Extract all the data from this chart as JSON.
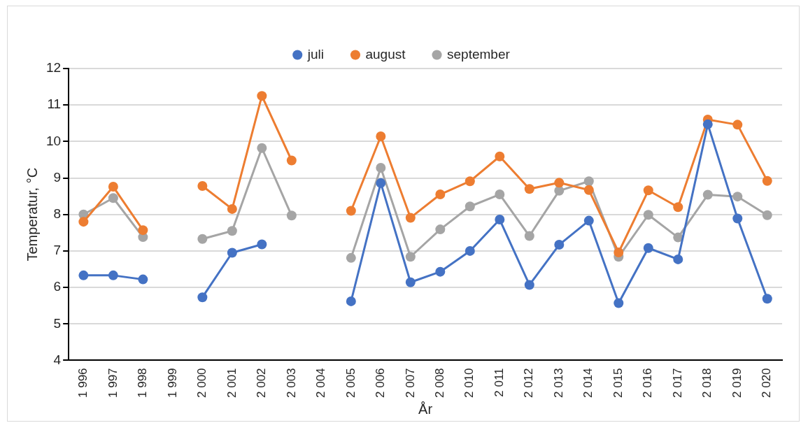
{
  "chart_data": {
    "type": "line",
    "xlabel": "År",
    "ylabel": "Temperatur, °C",
    "categories": [
      "1 996",
      "1 997",
      "1 998",
      "1 999",
      "2 000",
      "2 001",
      "2 002",
      "2 003",
      "2 004",
      "2 005",
      "2 006",
      "2 007",
      "2 008",
      "2 010",
      "2 011",
      "2 012",
      "2 013",
      "2 014",
      "2 015",
      "2 016",
      "2 017",
      "2 018",
      "2 019",
      "2 020"
    ],
    "series": [
      {
        "name": "juli",
        "color": "#4472c4",
        "values": [
          6.33,
          6.33,
          6.22,
          null,
          5.73,
          6.95,
          7.18,
          null,
          null,
          5.62,
          8.86,
          6.14,
          6.43,
          7.0,
          7.86,
          6.07,
          7.17,
          7.83,
          5.57,
          7.08,
          6.77,
          10.47,
          7.89,
          5.69
        ]
      },
      {
        "name": "august",
        "color": "#ed7d31",
        "values": [
          7.8,
          8.76,
          7.57,
          null,
          8.78,
          8.15,
          11.25,
          9.48,
          null,
          8.1,
          10.14,
          7.91,
          8.55,
          8.91,
          9.59,
          8.7,
          8.87,
          8.67,
          6.96,
          8.66,
          8.2,
          10.6,
          10.46,
          8.92
        ]
      },
      {
        "name": "september",
        "color": "#a5a5a5",
        "values": [
          8.0,
          8.45,
          7.38,
          null,
          7.33,
          7.55,
          9.82,
          7.97,
          null,
          6.81,
          9.28,
          6.84,
          7.59,
          8.22,
          8.55,
          7.41,
          8.65,
          8.91,
          6.84,
          7.99,
          7.37,
          8.54,
          8.49,
          7.98
        ]
      }
    ],
    "ylim": [
      4,
      12
    ],
    "yticks": [
      4,
      5,
      6,
      7,
      8,
      9,
      10,
      11,
      12
    ],
    "grid": "y",
    "legend": "top",
    "marker": "circle",
    "line_style": "solid"
  }
}
